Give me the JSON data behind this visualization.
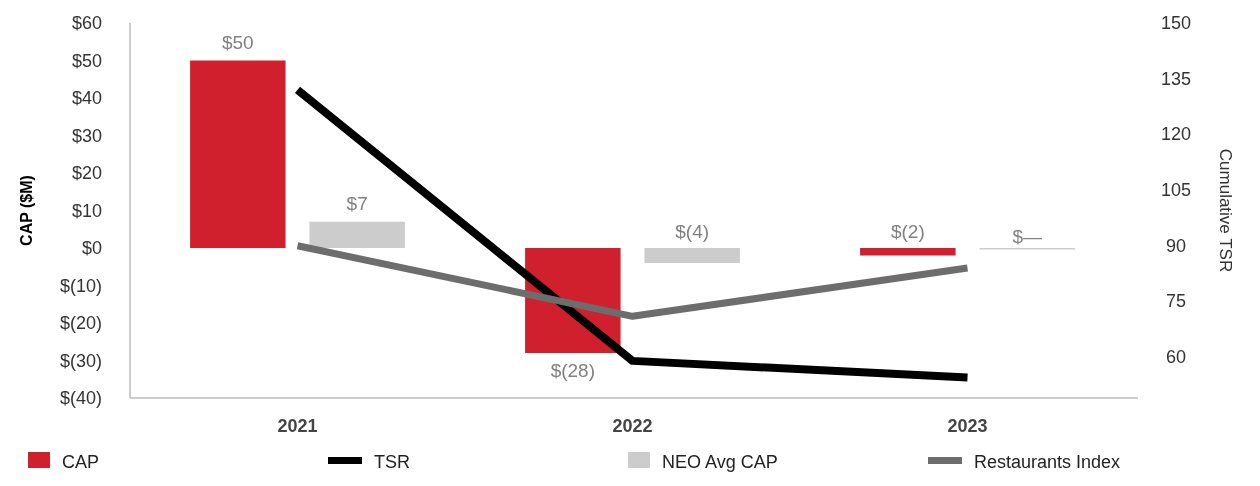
{
  "chart_data": {
    "type": "bar",
    "categories": [
      "2021",
      "2022",
      "2023"
    ],
    "ylabel": "CAP ($M)",
    "y2label": "Cumulative TSR",
    "ylim": [
      -40,
      60
    ],
    "yticks": [
      {
        "value": -40,
        "label": "$(40)"
      },
      {
        "value": -30,
        "label": "$(30)"
      },
      {
        "value": -20,
        "label": "$(20)"
      },
      {
        "value": -10,
        "label": "$(10)"
      },
      {
        "value": 0,
        "label": "$0"
      },
      {
        "value": 10,
        "label": "$10"
      },
      {
        "value": 20,
        "label": "$20"
      },
      {
        "value": 30,
        "label": "$30"
      },
      {
        "value": 40,
        "label": "$40"
      },
      {
        "value": 50,
        "label": "$50"
      },
      {
        "value": 60,
        "label": "$60"
      }
    ],
    "y2lim": [
      49,
      150
    ],
    "y2ticks": [
      60,
      75,
      90,
      105,
      120,
      135,
      150
    ],
    "series": [
      {
        "name": "CAP",
        "color": "#d0202e",
        "values": [
          50,
          -28,
          -2
        ],
        "value_labels": [
          "$50",
          "$(28)",
          "$(2)"
        ]
      },
      {
        "name": "TSR",
        "type": "line",
        "axis": "y2",
        "color": "#000000",
        "values": [
          132,
          59,
          54.5
        ]
      },
      {
        "name": "NEO Avg CAP",
        "color": "#cccccc",
        "values": [
          7,
          -4,
          0
        ],
        "value_labels": [
          "$7",
          "$(4)",
          "$—"
        ]
      },
      {
        "name": "Restaurants Index",
        "type": "line",
        "axis": "y2",
        "color": "#6d6d6d",
        "values": [
          90,
          71,
          84
        ]
      }
    ],
    "legend": "bottom",
    "grid": false
  }
}
